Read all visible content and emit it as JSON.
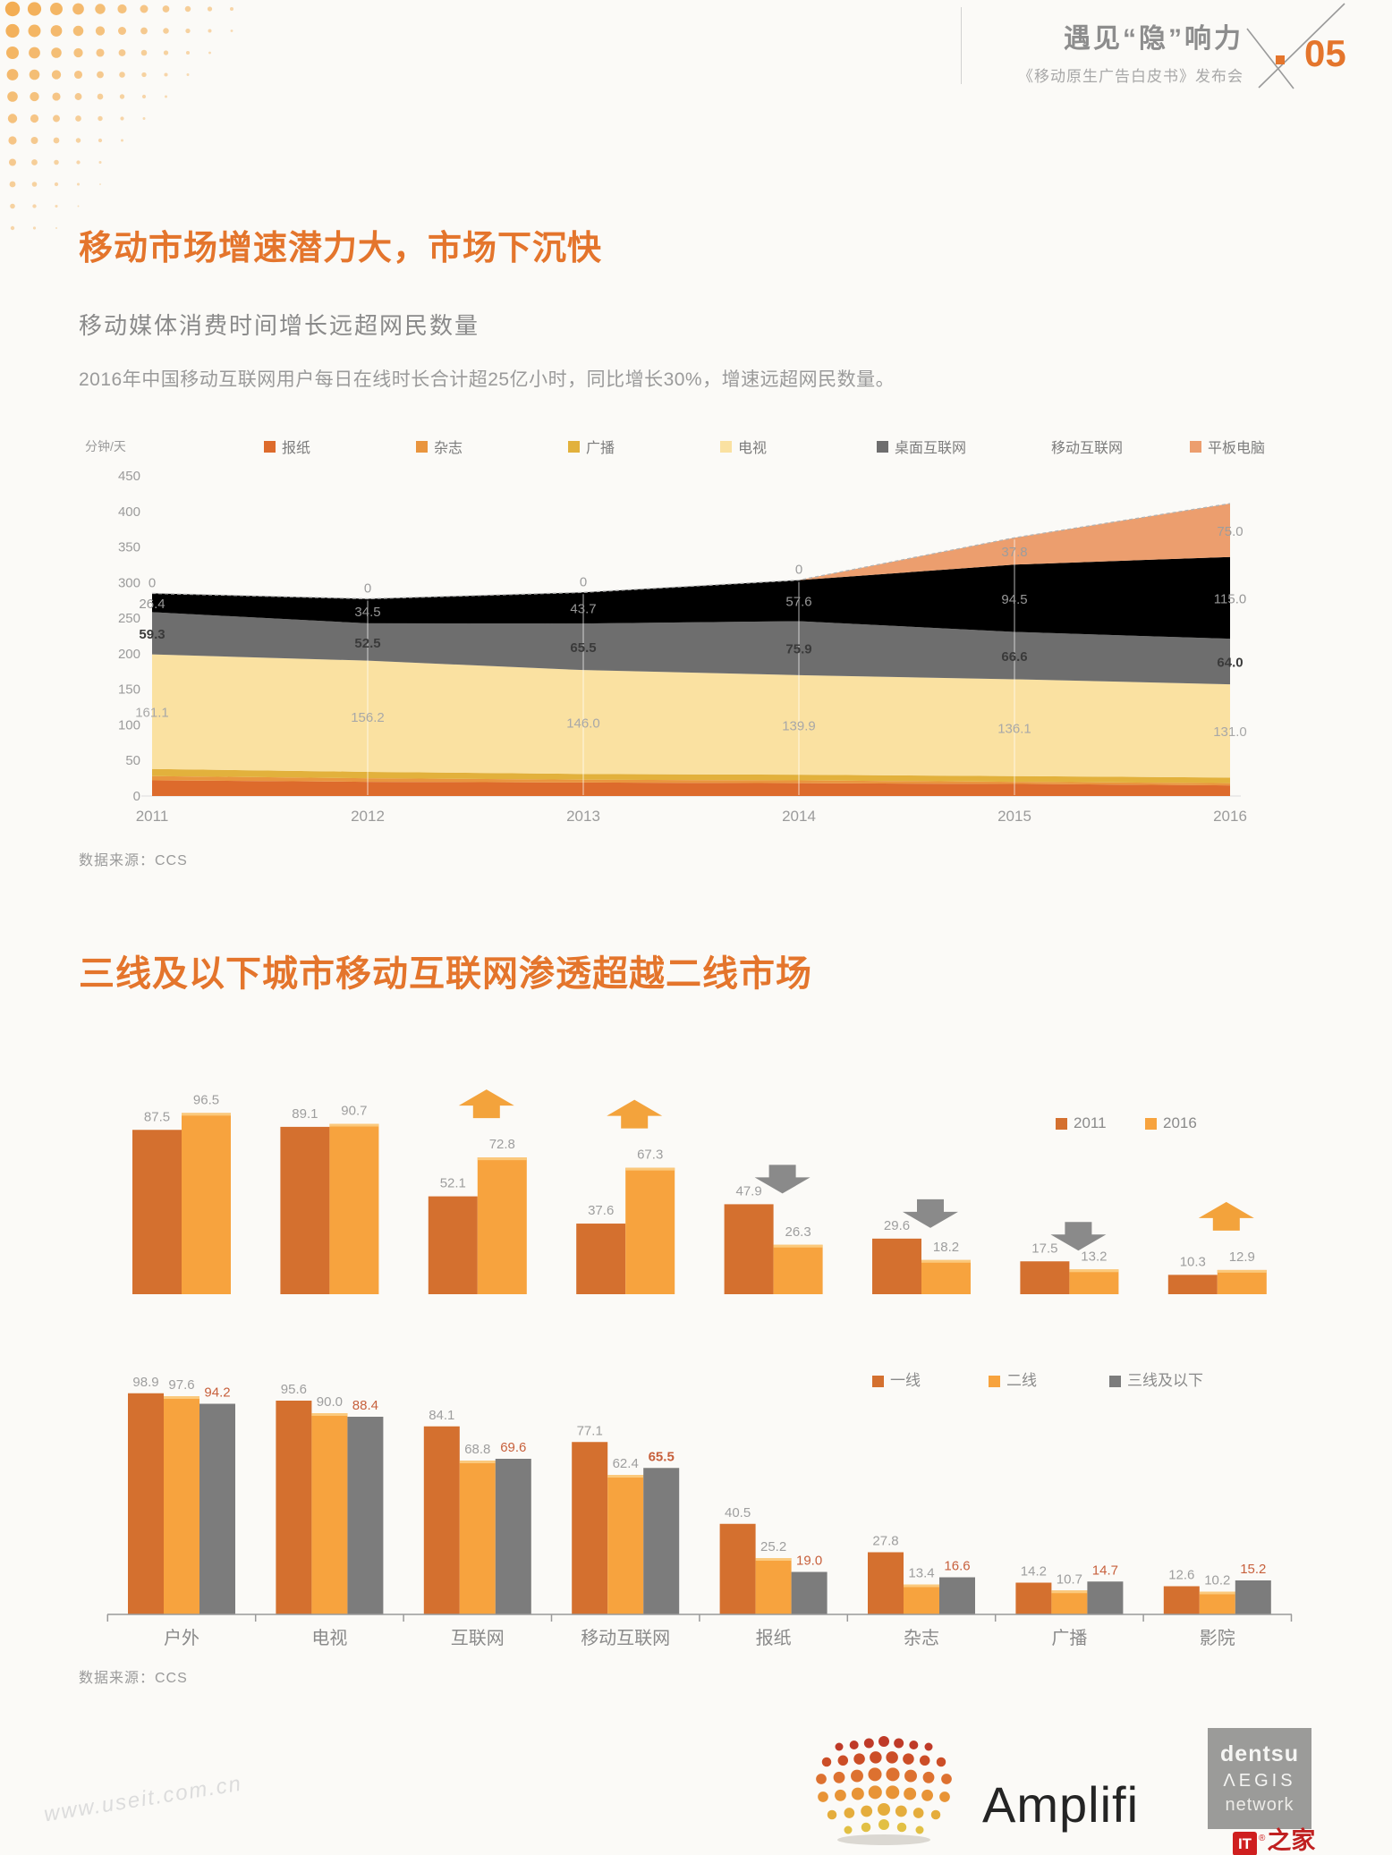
{
  "colors": {
    "accent": "#e4752c",
    "gray_text": "#8a8a8a"
  },
  "header": {
    "title": "遇见“隐”响力",
    "subtitle": "《移动原生广告白皮书》发布会",
    "page_number": "05"
  },
  "section1": {
    "title": "移动市场增速潜力大，市场下沉快",
    "subtitle": "移动媒体消费时间增长远超网民数量",
    "description": "2016年中国移动互联网用户每日在线时长合计超25亿小时，同比增长30%，增速远超网民数量。",
    "source": "数据来源：CCS"
  },
  "section2": {
    "title": "三线及以下城市移动互联网渗透超越二线市场",
    "source": "数据来源：CCS"
  },
  "footer": {
    "amplifi_label": "Amplifi",
    "dentsu_lines": [
      "dentsu",
      "ΛEGIS",
      "network"
    ],
    "watermark_left": "www.useit.com.cn",
    "it_box": "IT",
    "it_reg": "®",
    "it_rest": "之家"
  },
  "chart_data": [
    {
      "type": "area",
      "title": "移动媒体消费时间增长远超网民数量",
      "ylabel": "分钟/天",
      "x": [
        2011,
        2012,
        2013,
        2014,
        2015,
        2016
      ],
      "ylim": [
        0,
        450
      ],
      "ytick_step": 50,
      "grid": "vertical-on-areas",
      "legend_position": "top",
      "stack_order": "bottom-to-top",
      "series": [
        {
          "name": "报纸",
          "color": "#dd6b2c",
          "values": [
            22,
            20,
            19,
            18,
            17,
            15
          ],
          "estimated": true
        },
        {
          "name": "杂志",
          "color": "#e9953e",
          "values": [
            6,
            5,
            4,
            4,
            3,
            3
          ],
          "estimated": true
        },
        {
          "name": "广播",
          "color": "#e2b13c",
          "values": [
            10,
            9,
            8,
            8,
            8,
            8
          ],
          "estimated": true
        },
        {
          "name": "电视",
          "color": "#fae1a1",
          "values": [
            161.1,
            156.2,
            146.0,
            139.9,
            136.1,
            131.0
          ],
          "label_color": "#a8a8a8"
        },
        {
          "name": "桌面互联网",
          "color": "#6e6e6e",
          "values": [
            59.3,
            52.5,
            65.5,
            75.9,
            66.6,
            64.0
          ],
          "label_color": "#3a3a3a",
          "label_weight": "bold"
        },
        {
          "name": "移动互联网",
          "color": "#cccccа",
          "values": [
            26.4,
            34.5,
            43.7,
            57.6,
            94.5,
            115.0
          ],
          "label_color": "#979797"
        },
        {
          "name": "平板电脑",
          "color": "#ec9e6e",
          "values": [
            0,
            0,
            0,
            0,
            37.8,
            75.0
          ],
          "label_color": "#9d9d9d"
        }
      ],
      "labeled_series": [
        "电视",
        "桌面互联网",
        "移动互联网",
        "平板电脑"
      ]
    },
    {
      "type": "bar",
      "categories": [
        "户外",
        "电视",
        "互联网",
        "移动互联网",
        "报纸",
        "杂志",
        "广播",
        "影院"
      ],
      "series": [
        {
          "name": "2011",
          "color": "#d4702f",
          "values": [
            87.5,
            89.1,
            52.1,
            37.6,
            47.9,
            29.6,
            17.5,
            10.3
          ]
        },
        {
          "name": "2016",
          "color": "#f7a33e",
          "cap_color": "#fbc97c",
          "values": [
            96.5,
            90.7,
            72.8,
            67.3,
            26.3,
            18.2,
            13.2,
            12.9
          ]
        }
      ],
      "trend_arrows": [
        null,
        null,
        "up",
        "up",
        "down",
        "down",
        "down",
        "up"
      ],
      "arrow_colors": {
        "up": "#f3a33c",
        "down": "#8a8a8a"
      },
      "legend_position": "top-right",
      "category_labels_visible": false
    },
    {
      "type": "bar",
      "categories": [
        "户外",
        "电视",
        "互联网",
        "移动互联网",
        "报纸",
        "杂志",
        "广播",
        "影院"
      ],
      "series": [
        {
          "name": "一线",
          "color": "#d4702f",
          "values": [
            98.9,
            95.6,
            84.1,
            77.1,
            40.5,
            27.8,
            14.2,
            12.6
          ]
        },
        {
          "name": "二线",
          "color": "#f7a33e",
          "cap_color": "#fbc97c",
          "values": [
            97.6,
            90.0,
            68.8,
            62.4,
            25.2,
            13.4,
            10.7,
            10.2
          ]
        },
        {
          "name": "三线及以下",
          "color": "#7c7c7c",
          "values": [
            94.2,
            88.4,
            69.6,
            65.5,
            19.0,
            16.6,
            14.7,
            15.2
          ],
          "label_color": "#c7603c",
          "bold_indices": [
            3
          ]
        }
      ],
      "legend_position": "top-right",
      "category_labels_visible": true
    }
  ]
}
